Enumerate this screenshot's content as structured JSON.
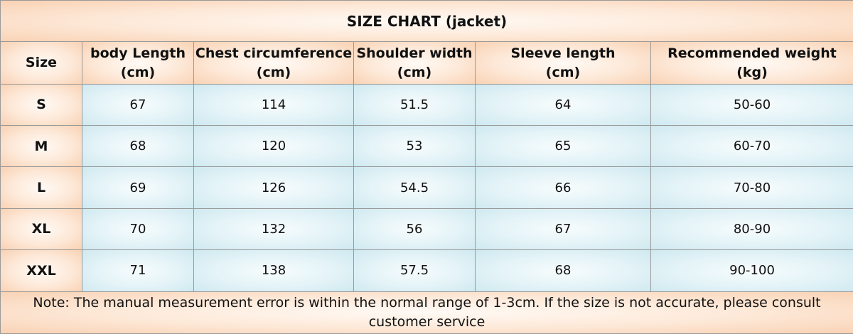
{
  "table": {
    "title": "SIZE CHART  (jacket)",
    "headers": [
      [
        "Size"
      ],
      [
        "body Length",
        "(cm)"
      ],
      [
        "Chest circumference",
        "(cm)"
      ],
      [
        "Shoulder width",
        "(cm)"
      ],
      [
        "Sleeve length",
        "(cm)"
      ],
      [
        "Recommended weight",
        "(kg)"
      ]
    ],
    "rows": [
      [
        "S",
        67,
        114,
        51.5,
        64,
        "50-60"
      ],
      [
        "M",
        68,
        120,
        53,
        65,
        "60-70"
      ],
      [
        "L",
        69,
        126,
        54.5,
        66,
        "70-80"
      ],
      [
        "XL",
        70,
        132,
        56,
        67,
        "80-90"
      ],
      [
        "XXL",
        71,
        138,
        57.5,
        68,
        "90-100"
      ]
    ],
    "note": "Note: The manual measurement error is within the normal range of 1-3cm. If the size is not accurate, please consult customer service"
  }
}
